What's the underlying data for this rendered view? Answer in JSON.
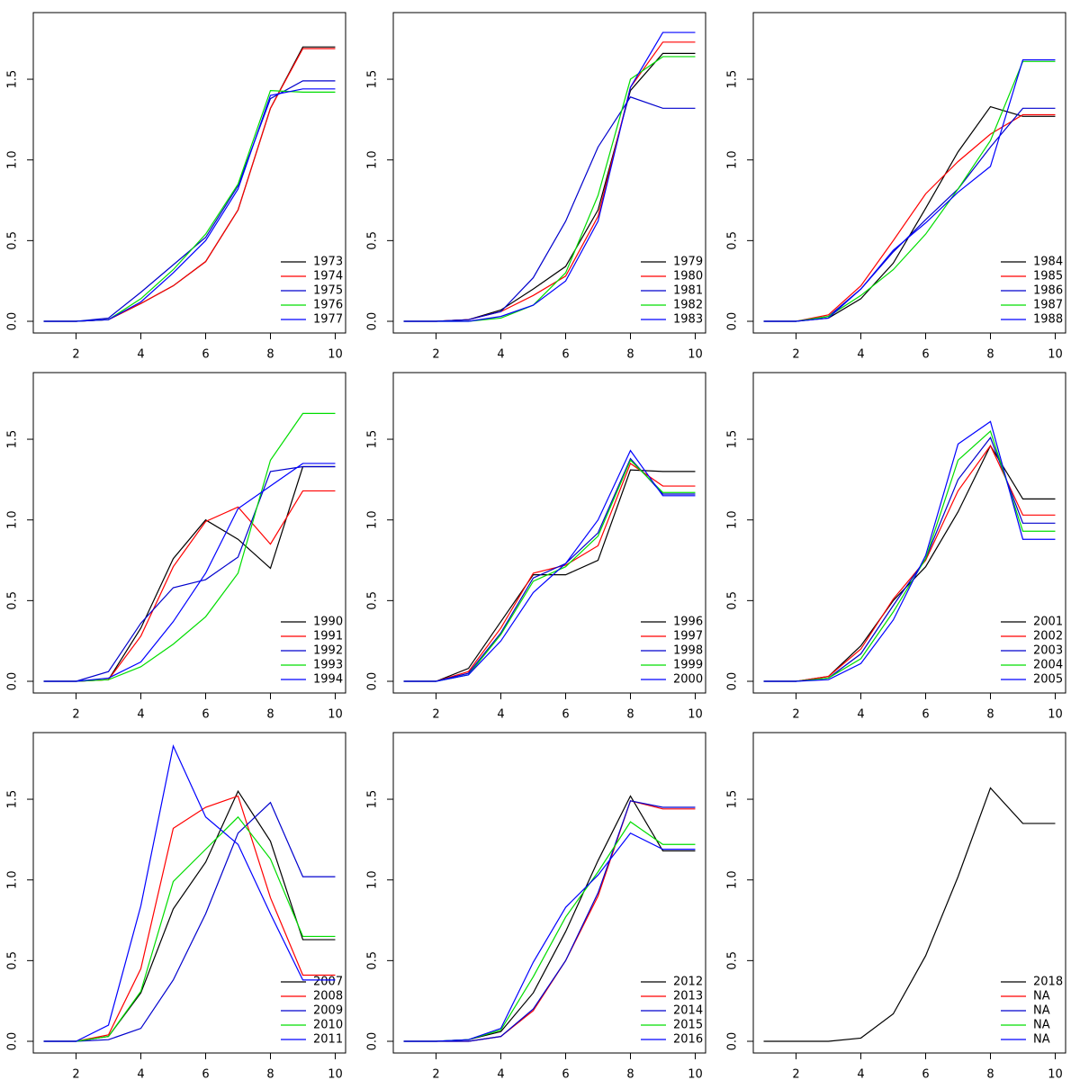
{
  "chart_data": [
    {
      "type": "line",
      "x": [
        1,
        2,
        3,
        4,
        5,
        6,
        7,
        8,
        9,
        10
      ],
      "xlim": [
        0.68,
        10.32
      ],
      "xticks": [
        2,
        4,
        6,
        8,
        10
      ],
      "ylim": [
        -0.0725,
        1.913
      ],
      "yticks": [
        {
          "value": 0,
          "label": "0.0"
        },
        0.5,
        {
          "value": 1,
          "label": "1.0"
        },
        1.5
      ],
      "legend": "bottom-right",
      "series": [
        {
          "name": "1973",
          "color": "#000000",
          "values": [
            0,
            0,
            0.01,
            0.11,
            0.22,
            0.37,
            0.69,
            1.32,
            1.7,
            1.7
          ]
        },
        {
          "name": "1974",
          "color": "#ff0000",
          "values": [
            0,
            0,
            0.01,
            0.11,
            0.22,
            0.37,
            0.69,
            1.32,
            1.69,
            1.69
          ]
        },
        {
          "name": "1975",
          "color": "#0000cd",
          "values": [
            0,
            0,
            0.02,
            0.18,
            0.35,
            0.52,
            0.84,
            1.38,
            1.49,
            1.49
          ]
        },
        {
          "name": "1976",
          "color": "#00dd00",
          "values": [
            0,
            0,
            0.01,
            0.14,
            0.32,
            0.54,
            0.85,
            1.43,
            1.42,
            1.42
          ]
        },
        {
          "name": "1977",
          "color": "#0000ff",
          "values": [
            0,
            0,
            0.01,
            0.12,
            0.3,
            0.5,
            0.82,
            1.4,
            1.44,
            1.44
          ]
        }
      ]
    },
    {
      "type": "line",
      "x": [
        1,
        2,
        3,
        4,
        5,
        6,
        7,
        8,
        9,
        10
      ],
      "xlim": [
        0.68,
        10.32
      ],
      "xticks": [
        2,
        4,
        6,
        8,
        10
      ],
      "ylim": [
        -0.0725,
        1.913
      ],
      "yticks": [
        {
          "value": 0,
          "label": "0.0"
        },
        0.5,
        {
          "value": 1,
          "label": "1.0"
        },
        1.5
      ],
      "legend": "bottom-right",
      "series": [
        {
          "name": "1979",
          "color": "#000000",
          "values": [
            0,
            0,
            0.01,
            0.07,
            0.2,
            0.34,
            0.69,
            1.43,
            1.66,
            1.66
          ]
        },
        {
          "name": "1980",
          "color": "#ff0000",
          "values": [
            0,
            0,
            0.01,
            0.06,
            0.16,
            0.28,
            0.65,
            1.45,
            1.73,
            1.73
          ]
        },
        {
          "name": "1981",
          "color": "#0000cd",
          "values": [
            0,
            0,
            0.01,
            0.06,
            0.27,
            0.62,
            1.08,
            1.39,
            1.32,
            1.32
          ]
        },
        {
          "name": "1982",
          "color": "#00dd00",
          "values": [
            0,
            0,
            0.0,
            0.02,
            0.1,
            0.3,
            0.78,
            1.5,
            1.64,
            1.64
          ]
        },
        {
          "name": "1983",
          "color": "#0000ff",
          "values": [
            0,
            0,
            0.0,
            0.03,
            0.1,
            0.25,
            0.62,
            1.45,
            1.79,
            1.79
          ]
        }
      ]
    },
    {
      "type": "line",
      "x": [
        1,
        2,
        3,
        4,
        5,
        6,
        7,
        8,
        9,
        10
      ],
      "xlim": [
        0.68,
        10.32
      ],
      "xticks": [
        2,
        4,
        6,
        8,
        10
      ],
      "ylim": [
        -0.0725,
        1.913
      ],
      "yticks": [
        {
          "value": 0,
          "label": "0.0"
        },
        0.5,
        {
          "value": 1,
          "label": "1.0"
        },
        1.5
      ],
      "legend": "bottom-right",
      "series": [
        {
          "name": "1984",
          "color": "#000000",
          "values": [
            0,
            0,
            0.02,
            0.14,
            0.36,
            0.7,
            1.05,
            1.33,
            1.27,
            1.27
          ]
        },
        {
          "name": "1985",
          "color": "#ff0000",
          "values": [
            0,
            0,
            0.04,
            0.22,
            0.5,
            0.79,
            0.99,
            1.16,
            1.28,
            1.28
          ]
        },
        {
          "name": "1986",
          "color": "#0000cd",
          "values": [
            0,
            0,
            0.03,
            0.2,
            0.43,
            0.63,
            0.82,
            1.08,
            1.32,
            1.32
          ]
        },
        {
          "name": "1987",
          "color": "#00dd00",
          "values": [
            0,
            0,
            0.03,
            0.16,
            0.32,
            0.54,
            0.82,
            1.12,
            1.61,
            1.61
          ]
        },
        {
          "name": "1988",
          "color": "#0000ff",
          "values": [
            0,
            0,
            0.02,
            0.2,
            0.44,
            0.61,
            0.8,
            0.96,
            1.62,
            1.62
          ]
        }
      ]
    },
    {
      "type": "line",
      "x": [
        1,
        2,
        3,
        4,
        5,
        6,
        7,
        8,
        9,
        10
      ],
      "xlim": [
        0.68,
        10.32
      ],
      "xticks": [
        2,
        4,
        6,
        8,
        10
      ],
      "ylim": [
        -0.0725,
        1.913
      ],
      "yticks": [
        {
          "value": 0,
          "label": "0.0"
        },
        0.5,
        {
          "value": 1,
          "label": "1.0"
        },
        1.5
      ],
      "legend": "bottom-right",
      "series": [
        {
          "name": "1990",
          "color": "#000000",
          "values": [
            0,
            0,
            0.01,
            0.33,
            0.76,
            1.0,
            0.88,
            0.7,
            1.33,
            1.33
          ]
        },
        {
          "name": "1991",
          "color": "#ff0000",
          "values": [
            0,
            0,
            0.01,
            0.28,
            0.71,
            0.99,
            1.08,
            0.85,
            1.18,
            1.18
          ]
        },
        {
          "name": "1992",
          "color": "#0000cd",
          "values": [
            0,
            0,
            0.06,
            0.36,
            0.58,
            0.63,
            0.77,
            1.3,
            1.33,
            1.33
          ]
        },
        {
          "name": "1993",
          "color": "#00dd00",
          "values": [
            0,
            0,
            0.01,
            0.09,
            0.23,
            0.4,
            0.67,
            1.37,
            1.66,
            1.66
          ]
        },
        {
          "name": "1994",
          "color": "#0000ff",
          "values": [
            0,
            0,
            0.02,
            0.12,
            0.37,
            0.67,
            1.07,
            1.21,
            1.35,
            1.35
          ]
        }
      ]
    },
    {
      "type": "line",
      "x": [
        1,
        2,
        3,
        4,
        5,
        6,
        7,
        8,
        9,
        10
      ],
      "xlim": [
        0.68,
        10.32
      ],
      "xticks": [
        2,
        4,
        6,
        8,
        10
      ],
      "ylim": [
        -0.0725,
        1.913
      ],
      "yticks": [
        {
          "value": 0,
          "label": "0.0"
        },
        0.5,
        {
          "value": 1,
          "label": "1.0"
        },
        1.5
      ],
      "legend": "bottom-right",
      "series": [
        {
          "name": "1996",
          "color": "#000000",
          "values": [
            0,
            0,
            0.08,
            0.37,
            0.66,
            0.66,
            0.75,
            1.31,
            1.3,
            1.3
          ]
        },
        {
          "name": "1997",
          "color": "#ff0000",
          "values": [
            0,
            0,
            0.06,
            0.33,
            0.67,
            0.72,
            0.84,
            1.35,
            1.21,
            1.21
          ]
        },
        {
          "name": "1998",
          "color": "#0000cd",
          "values": [
            0,
            0,
            0.05,
            0.3,
            0.64,
            0.73,
            0.92,
            1.38,
            1.16,
            1.16
          ]
        },
        {
          "name": "1999",
          "color": "#00dd00",
          "values": [
            0,
            0,
            0.04,
            0.29,
            0.62,
            0.71,
            0.9,
            1.37,
            1.17,
            1.17
          ]
        },
        {
          "name": "2000",
          "color": "#0000ff",
          "values": [
            0,
            0,
            0.04,
            0.25,
            0.55,
            0.73,
            1.0,
            1.43,
            1.15,
            1.15
          ]
        }
      ]
    },
    {
      "type": "line",
      "x": [
        1,
        2,
        3,
        4,
        5,
        6,
        7,
        8,
        9,
        10
      ],
      "xlim": [
        0.68,
        10.32
      ],
      "xticks": [
        2,
        4,
        6,
        8,
        10
      ],
      "ylim": [
        -0.0725,
        1.913
      ],
      "yticks": [
        {
          "value": 0,
          "label": "0.0"
        },
        0.5,
        {
          "value": 1,
          "label": "1.0"
        },
        1.5
      ],
      "legend": "bottom-right",
      "series": [
        {
          "name": "2001",
          "color": "#000000",
          "values": [
            0,
            0,
            0.03,
            0.22,
            0.5,
            0.71,
            1.05,
            1.46,
            1.13,
            1.13
          ]
        },
        {
          "name": "2002",
          "color": "#ff0000",
          "values": [
            0,
            0,
            0.03,
            0.2,
            0.51,
            0.75,
            1.18,
            1.46,
            1.03,
            1.03
          ]
        },
        {
          "name": "2003",
          "color": "#0000cd",
          "values": [
            0,
            0,
            0.02,
            0.17,
            0.47,
            0.76,
            1.25,
            1.51,
            0.98,
            0.98
          ]
        },
        {
          "name": "2004",
          "color": "#00dd00",
          "values": [
            0,
            0,
            0.02,
            0.14,
            0.43,
            0.76,
            1.37,
            1.55,
            0.93,
            0.93
          ]
        },
        {
          "name": "2005",
          "color": "#0000ff",
          "values": [
            0,
            0,
            0.01,
            0.11,
            0.38,
            0.78,
            1.47,
            1.61,
            0.88,
            0.88
          ]
        }
      ]
    },
    {
      "type": "line",
      "x": [
        1,
        2,
        3,
        4,
        5,
        6,
        7,
        8,
        9,
        10
      ],
      "xlim": [
        0.68,
        10.32
      ],
      "xticks": [
        2,
        4,
        6,
        8,
        10
      ],
      "ylim": [
        -0.0725,
        1.913
      ],
      "yticks": [
        {
          "value": 0,
          "label": "0.0"
        },
        0.5,
        {
          "value": 1,
          "label": "1.0"
        },
        1.5
      ],
      "legend": "bottom-right",
      "series": [
        {
          "name": "2007",
          "color": "#000000",
          "values": [
            0,
            0,
            0.03,
            0.3,
            0.82,
            1.11,
            1.55,
            1.24,
            0.63,
            0.63
          ]
        },
        {
          "name": "2008",
          "color": "#ff0000",
          "values": [
            0,
            0,
            0.04,
            0.45,
            1.32,
            1.45,
            1.52,
            0.89,
            0.41,
            0.41
          ]
        },
        {
          "name": "2009",
          "color": "#0000cd",
          "values": [
            0,
            0,
            0.01,
            0.08,
            0.38,
            0.79,
            1.29,
            1.48,
            1.02,
            1.02
          ]
        },
        {
          "name": "2010",
          "color": "#00dd00",
          "values": [
            0,
            0,
            0.03,
            0.31,
            0.99,
            1.19,
            1.39,
            1.13,
            0.65,
            0.65
          ]
        },
        {
          "name": "2011",
          "color": "#0000ff",
          "values": [
            0,
            0,
            0.1,
            0.84,
            1.83,
            1.39,
            1.22,
            0.79,
            0.38,
            0.38
          ]
        }
      ]
    },
    {
      "type": "line",
      "x": [
        1,
        2,
        3,
        4,
        5,
        6,
        7,
        8,
        9,
        10
      ],
      "xlim": [
        0.68,
        10.32
      ],
      "xticks": [
        2,
        4,
        6,
        8,
        10
      ],
      "ylim": [
        -0.0725,
        1.913
      ],
      "yticks": [
        {
          "value": 0,
          "label": "0.0"
        },
        0.5,
        {
          "value": 1,
          "label": "1.0"
        },
        1.5
      ],
      "legend": "bottom-right",
      "series": [
        {
          "name": "2012",
          "color": "#000000",
          "values": [
            0,
            0,
            0.01,
            0.06,
            0.3,
            0.68,
            1.12,
            1.52,
            1.18,
            1.18
          ]
        },
        {
          "name": "2013",
          "color": "#ff0000",
          "values": [
            0,
            0,
            0.0,
            0.03,
            0.19,
            0.5,
            0.9,
            1.49,
            1.44,
            1.44
          ]
        },
        {
          "name": "2014",
          "color": "#0000cd",
          "values": [
            0,
            0,
            0.0,
            0.03,
            0.2,
            0.5,
            0.92,
            1.49,
            1.45,
            1.45
          ]
        },
        {
          "name": "2015",
          "color": "#00dd00",
          "values": [
            0,
            0,
            0.01,
            0.07,
            0.4,
            0.77,
            1.05,
            1.36,
            1.22,
            1.22
          ]
        },
        {
          "name": "2016",
          "color": "#0000ff",
          "values": [
            0,
            0,
            0.01,
            0.08,
            0.49,
            0.83,
            1.03,
            1.29,
            1.19,
            1.19
          ]
        }
      ]
    },
    {
      "type": "line",
      "x": [
        1,
        2,
        3,
        4,
        5,
        6,
        7,
        8,
        9,
        10
      ],
      "xlim": [
        0.68,
        10.32
      ],
      "xticks": [
        2,
        4,
        6,
        8,
        10
      ],
      "ylim": [
        -0.0725,
        1.913
      ],
      "yticks": [
        {
          "value": 0,
          "label": "0.0"
        },
        0.5,
        {
          "value": 1,
          "label": "1.0"
        },
        1.5
      ],
      "legend": "bottom-right",
      "series": [
        {
          "name": "2018",
          "color": "#000000",
          "values": [
            0,
            0,
            0.0,
            0.02,
            0.17,
            0.53,
            1.02,
            1.57,
            1.35,
            1.35
          ]
        },
        {
          "name": "NA",
          "color": "#ff0000",
          "values": [
            null,
            null,
            null,
            null,
            null,
            null,
            null,
            null,
            null,
            null
          ]
        },
        {
          "name": "NA",
          "color": "#0000cd",
          "values": [
            null,
            null,
            null,
            null,
            null,
            null,
            null,
            null,
            null,
            null
          ]
        },
        {
          "name": "NA",
          "color": "#00dd00",
          "values": [
            null,
            null,
            null,
            null,
            null,
            null,
            null,
            null,
            null,
            null
          ]
        },
        {
          "name": "NA",
          "color": "#0000ff",
          "values": [
            null,
            null,
            null,
            null,
            null,
            null,
            null,
            null,
            null,
            null
          ]
        }
      ]
    }
  ]
}
